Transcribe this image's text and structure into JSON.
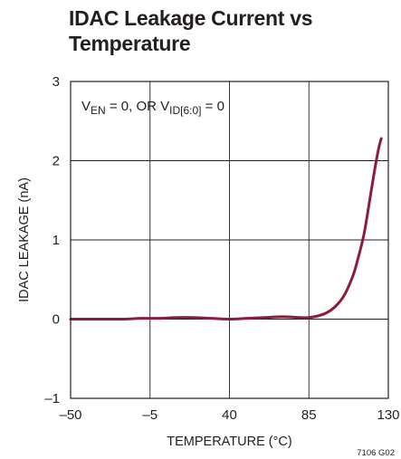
{
  "chart_data": {
    "type": "line",
    "title_lines": [
      "IDAC Leakage Current vs",
      "Temperature"
    ],
    "xlabel": "TEMPERATURE (°C)",
    "ylabel": "IDAC  LEAKAGE (nA)",
    "xlim": [
      -50,
      130
    ],
    "ylim": [
      -1,
      3
    ],
    "x_ticks": [
      -50,
      -5,
      40,
      85,
      130
    ],
    "x_tick_labels": [
      "–50",
      "–5",
      "40",
      "85",
      "130"
    ],
    "y_ticks": [
      -1,
      0,
      1,
      2,
      3
    ],
    "y_tick_labels": [
      "–1",
      "0",
      "1",
      "2",
      "3"
    ],
    "grid": true,
    "annotation": {
      "parts": [
        {
          "text": "V",
          "sub": false
        },
        {
          "text": "EN",
          "sub": true
        },
        {
          "text": " = 0, OR V",
          "sub": false
        },
        {
          "text": "ID[6:0]",
          "sub": true
        },
        {
          "text": " = 0",
          "sub": false
        }
      ]
    },
    "figure_code": "7106 G02",
    "series": [
      {
        "color": "#8c1d3a",
        "x": [
          -50,
          -40,
          -30,
          -20,
          -10,
          0,
          10,
          20,
          30,
          40,
          50,
          60,
          70,
          80,
          85,
          90,
          95,
          100,
          105,
          110,
          113,
          116,
          118,
          120,
          122,
          124,
          125,
          126
        ],
        "y": [
          0.0,
          0.0,
          0.0,
          0.0,
          0.01,
          0.01,
          0.02,
          0.02,
          0.01,
          0.0,
          0.01,
          0.02,
          0.03,
          0.02,
          0.02,
          0.04,
          0.08,
          0.16,
          0.3,
          0.55,
          0.78,
          1.05,
          1.3,
          1.58,
          1.85,
          2.1,
          2.2,
          2.28
        ]
      }
    ]
  }
}
